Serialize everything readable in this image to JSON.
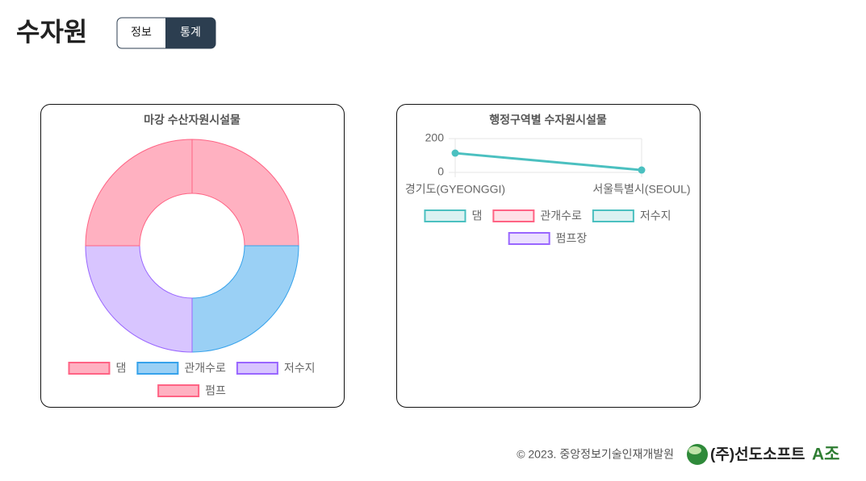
{
  "header": {
    "title": "수자원",
    "tabs": [
      "정보",
      "통계"
    ]
  },
  "chart_data": [
    {
      "type": "doughnut",
      "title": "마강 수산자원시설물",
      "categories": [
        "댐",
        "관개수로",
        "저수지",
        "펌프"
      ],
      "values": [
        1,
        1,
        1,
        1
      ],
      "colors": [
        "#ffb1c1",
        "#9ad0f5",
        "#d8c5ff",
        "#ffb1c1"
      ],
      "border_colors": [
        "#ff6384",
        "#36a2eb",
        "#9966ff",
        "#ff6384"
      ]
    },
    {
      "type": "line",
      "title": "행정구역별 수자원시설물",
      "categories": [
        "경기도(GYEONGGI)",
        "서울특별시(SEOUL)"
      ],
      "series": [
        {
          "name": "댐",
          "color": "#4bc0c0",
          "values": [
            114,
            14
          ]
        },
        {
          "name": "관개수로",
          "color": "#ff6384",
          "values": [
            null,
            null
          ]
        },
        {
          "name": "저수지",
          "color": "#4bc0c0",
          "values": [
            null,
            null
          ]
        },
        {
          "name": "펌프장",
          "color": "#9966ff",
          "values": [
            null,
            null
          ]
        }
      ],
      "ylim": [
        0,
        200
      ],
      "yticks": [
        0,
        200
      ],
      "grid": true
    }
  ],
  "footer": {
    "copyright": "© 2023. 중앙정보기술인재개발원",
    "company": "(주)선도소프트",
    "team": "A조"
  }
}
